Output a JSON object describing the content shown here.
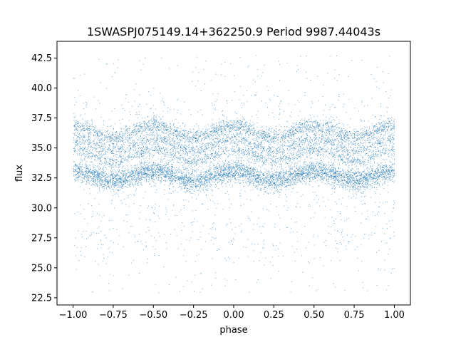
{
  "chart_data": {
    "type": "scatter",
    "title": "1SWASPJ075149.14+362250.9 Period 9987.44043s",
    "xlabel": "phase",
    "ylabel": "flux",
    "xlim": [
      -1.1,
      1.1
    ],
    "ylim": [
      21.9,
      43.9
    ],
    "xticks": [
      -1.0,
      -0.75,
      -0.5,
      -0.25,
      0.0,
      0.25,
      0.5,
      0.75,
      1.0
    ],
    "xtick_labels": [
      "−1.00",
      "−0.75",
      "−0.50",
      "−0.25",
      "0.00",
      "0.25",
      "0.50",
      "0.75",
      "1.00"
    ],
    "yticks": [
      22.5,
      25.0,
      27.5,
      30.0,
      32.5,
      35.0,
      37.5,
      40.0,
      42.5
    ],
    "ytick_labels": [
      "22.5",
      "25.0",
      "27.5",
      "30.0",
      "32.5",
      "35.0",
      "37.5",
      "40.0",
      "42.5"
    ],
    "grid": false,
    "point_color": "#1f77b4",
    "phase_range": [
      -1.0,
      1.0
    ],
    "flux_range": [
      22.9,
      42.8
    ],
    "bands": [
      {
        "mean_flux": 32.7,
        "semi_amplitude": 0.4,
        "spread": 0.9
      },
      {
        "mean_flux": 34.4,
        "semi_amplitude": 0.5,
        "spread": 0.5
      },
      {
        "mean_flux": 35.3,
        "semi_amplitude": 0.5,
        "spread": 0.5
      },
      {
        "mean_flux": 36.4,
        "semi_amplitude": 0.5,
        "spread": 0.7
      }
    ]
  }
}
